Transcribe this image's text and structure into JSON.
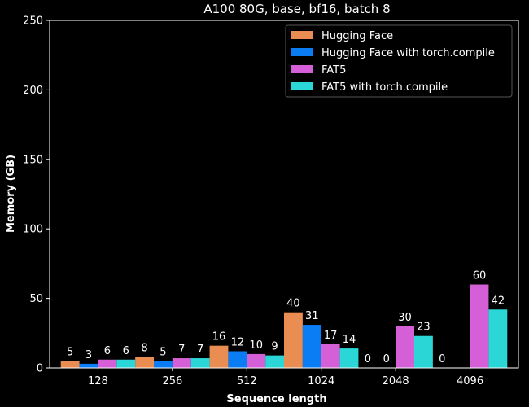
{
  "chart_data": {
    "type": "bar",
    "title": "A100 80G, base, bf16, batch 8",
    "xlabel": "Sequence length",
    "ylabel": "Memory (GB)",
    "ylim": [
      0,
      250
    ],
    "yticks": [
      0,
      50,
      100,
      150,
      200,
      250
    ],
    "categories": [
      "128",
      "256",
      "512",
      "1024",
      "2048",
      "4096"
    ],
    "legend_position": "top-right",
    "grid": false,
    "series": [
      {
        "name": "Hugging Face",
        "color": "#E98D52",
        "values": [
          5,
          8,
          16,
          40,
          0,
          0
        ]
      },
      {
        "name": "Hugging Face with torch.compile",
        "color": "#0A7DF5",
        "values": [
          3,
          5,
          12,
          31,
          0,
          0
        ]
      },
      {
        "name": "FAT5",
        "color": "#D45FD6",
        "values": [
          6,
          7,
          10,
          17,
          30,
          60
        ]
      },
      {
        "name": "FAT5 with torch.compile",
        "color": "#2AD6D6",
        "values": [
          6,
          7,
          9,
          14,
          23,
          42
        ]
      }
    ],
    "bar_labels": [
      [
        "5",
        "8",
        "16",
        "40",
        "0",
        "0"
      ],
      [
        "3",
        "5",
        "12",
        "31",
        "0",
        ""
      ],
      [
        "6",
        "7",
        "10",
        "17",
        "30",
        "60"
      ],
      [
        "6",
        "7",
        "9",
        "14",
        "23",
        "42"
      ]
    ]
  }
}
